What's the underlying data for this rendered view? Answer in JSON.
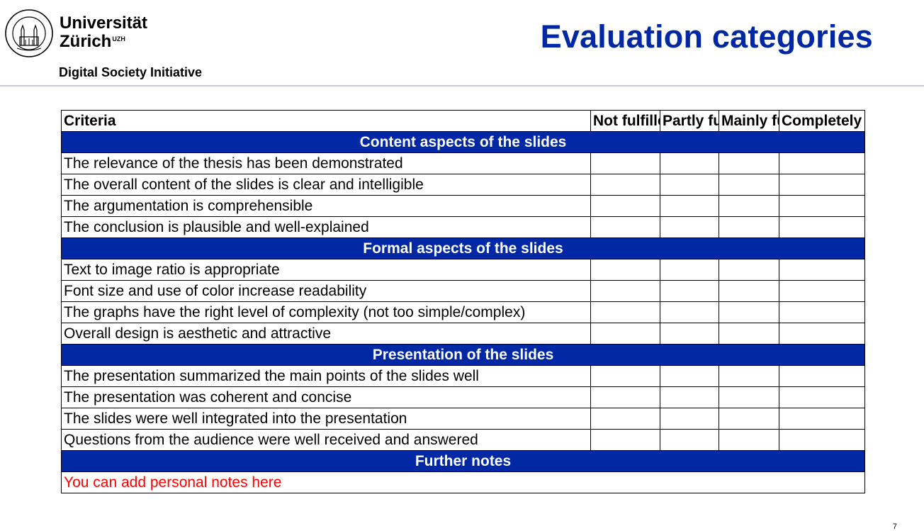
{
  "header": {
    "university_line1": "Universität",
    "university_line2": "Zürich",
    "university_sup": "UZH",
    "initiative": "Digital Society Initiative",
    "slide_title": "Evaluation categories"
  },
  "table": {
    "criteria_header": "Criteria",
    "rating_columns": [
      "Not fulfilled",
      "Partly fulfilled",
      "Mainly fulfilled",
      "Completely fulfilled"
    ],
    "sections": [
      {
        "title": "Content aspects of the slides",
        "rows": [
          "The relevance of the thesis has been demonstrated",
          "The overall content of the slides is clear and intelligible",
          "The argumentation is comprehensible",
          "The conclusion is plausible and well-explained"
        ]
      },
      {
        "title": "Formal aspects of the slides",
        "rows": [
          "Text to image ratio is appropriate",
          "Font size and use of color increase readability",
          "The graphs have the right level of complexity (not too simple/complex)",
          "Overall design is aesthetic and attractive"
        ]
      },
      {
        "title": "Presentation of the slides",
        "rows": [
          "The presentation summarized the main points of the slides well",
          "The presentation was coherent and concise",
          "The slides were well integrated into the presentation",
          "Questions from the audience were well received and answered"
        ]
      }
    ],
    "notes_header": "Further notes",
    "notes_placeholder": "You can add personal notes here"
  },
  "page_number": "7",
  "colors": {
    "accent": "#0028a5",
    "notes_text": "#ff0000"
  }
}
